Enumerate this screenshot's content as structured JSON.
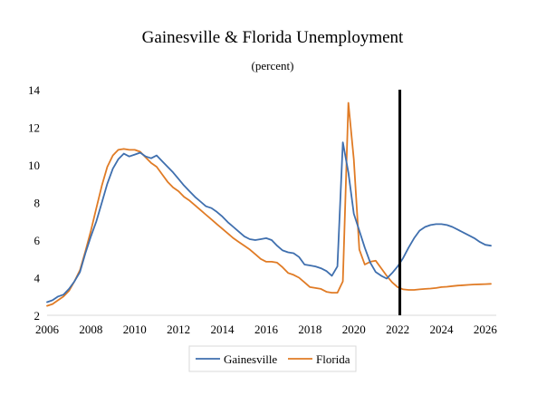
{
  "chart_data": {
    "type": "line",
    "title": "Gainesville & Florida Unemployment",
    "subtitle": "(percent)",
    "xlabel": "",
    "ylabel": "",
    "xlim": [
      2006,
      2026.5
    ],
    "ylim": [
      2,
      14
    ],
    "xticks": [
      "2006",
      "2008",
      "2010",
      "2012",
      "2014",
      "2016",
      "2018",
      "2020",
      "2022",
      "2024",
      "2026"
    ],
    "yticks": [
      "2",
      "4",
      "6",
      "8",
      "10",
      "12",
      "14"
    ],
    "grid": false,
    "legend_position": "bottom",
    "forecast_line_x": 2022.1,
    "series": [
      {
        "name": "Gainesville",
        "color": "#3f6fae",
        "x": [
          2006.0,
          2006.25,
          2006.5,
          2006.75,
          2007.0,
          2007.25,
          2007.5,
          2007.75,
          2008.0,
          2008.25,
          2008.5,
          2008.75,
          2009.0,
          2009.25,
          2009.5,
          2009.75,
          2010.0,
          2010.25,
          2010.5,
          2010.75,
          2011.0,
          2011.25,
          2011.5,
          2011.75,
          2012.0,
          2012.25,
          2012.5,
          2012.75,
          2013.0,
          2013.25,
          2013.5,
          2013.75,
          2014.0,
          2014.25,
          2014.5,
          2014.75,
          2015.0,
          2015.25,
          2015.5,
          2015.75,
          2016.0,
          2016.25,
          2016.5,
          2016.75,
          2017.0,
          2017.25,
          2017.5,
          2017.75,
          2018.0,
          2018.25,
          2018.5,
          2018.75,
          2019.0,
          2019.25,
          2019.5,
          2019.75,
          2020.0,
          2020.25,
          2020.5,
          2020.75,
          2021.0,
          2021.25,
          2021.5,
          2021.75,
          2022.0,
          2022.25,
          2022.5,
          2022.75,
          2023.0,
          2023.25,
          2023.5,
          2023.75,
          2024.0,
          2024.25,
          2024.5,
          2024.75,
          2025.0,
          2025.25,
          2025.5,
          2025.75,
          2026.0,
          2026.25
        ],
        "values": [
          2.7,
          2.8,
          3.0,
          3.1,
          3.4,
          3.8,
          4.3,
          5.3,
          6.2,
          7.0,
          8.0,
          9.0,
          9.8,
          10.3,
          10.6,
          10.45,
          10.55,
          10.65,
          10.45,
          10.35,
          10.5,
          10.2,
          9.9,
          9.6,
          9.25,
          8.9,
          8.6,
          8.3,
          8.05,
          7.8,
          7.7,
          7.5,
          7.25,
          6.95,
          6.7,
          6.45,
          6.2,
          6.05,
          6.0,
          6.05,
          6.1,
          6.0,
          5.7,
          5.45,
          5.35,
          5.3,
          5.1,
          4.7,
          4.65,
          4.6,
          4.5,
          4.35,
          4.1,
          4.6,
          11.2,
          9.6,
          7.4,
          6.5,
          5.6,
          4.8,
          4.3,
          4.1,
          3.95,
          4.25,
          4.6,
          5.05,
          5.6,
          6.1,
          6.5,
          6.7,
          6.8,
          6.85,
          6.85,
          6.8,
          6.7,
          6.55,
          6.4,
          6.25,
          6.1,
          5.9,
          5.75,
          5.7
        ]
      },
      {
        "name": "Florida",
        "color": "#e07b25",
        "x": [
          2006.0,
          2006.25,
          2006.5,
          2006.75,
          2007.0,
          2007.25,
          2007.5,
          2007.75,
          2008.0,
          2008.25,
          2008.5,
          2008.75,
          2009.0,
          2009.25,
          2009.5,
          2009.75,
          2010.0,
          2010.25,
          2010.5,
          2010.75,
          2011.0,
          2011.25,
          2011.5,
          2011.75,
          2012.0,
          2012.25,
          2012.5,
          2012.75,
          2013.0,
          2013.25,
          2013.5,
          2013.75,
          2014.0,
          2014.25,
          2014.5,
          2014.75,
          2015.0,
          2015.25,
          2015.5,
          2015.75,
          2016.0,
          2016.25,
          2016.5,
          2016.75,
          2017.0,
          2017.25,
          2017.5,
          2017.75,
          2018.0,
          2018.25,
          2018.5,
          2018.75,
          2019.0,
          2019.25,
          2019.5,
          2019.75,
          2020.0,
          2020.25,
          2020.5,
          2020.75,
          2021.0,
          2021.25,
          2021.5,
          2021.75,
          2022.0,
          2022.25,
          2022.5,
          2022.75,
          2023.0,
          2023.25,
          2023.5,
          2023.75,
          2024.0,
          2024.25,
          2024.5,
          2024.75,
          2025.0,
          2025.25,
          2025.5,
          2025.75,
          2026.0,
          2026.25
        ],
        "values": [
          2.5,
          2.6,
          2.8,
          3.0,
          3.3,
          3.8,
          4.4,
          5.4,
          6.5,
          7.7,
          8.9,
          9.9,
          10.5,
          10.8,
          10.85,
          10.8,
          10.8,
          10.7,
          10.4,
          10.1,
          9.9,
          9.5,
          9.1,
          8.8,
          8.6,
          8.3,
          8.1,
          7.85,
          7.6,
          7.35,
          7.1,
          6.85,
          6.6,
          6.35,
          6.1,
          5.9,
          5.7,
          5.5,
          5.25,
          5.0,
          4.85,
          4.85,
          4.8,
          4.55,
          4.25,
          4.15,
          4.0,
          3.75,
          3.5,
          3.45,
          3.4,
          3.25,
          3.2,
          3.2,
          3.8,
          13.3,
          10.3,
          5.5,
          4.7,
          4.85,
          4.9,
          4.5,
          4.1,
          3.75,
          3.5,
          3.38,
          3.35,
          3.35,
          3.38,
          3.4,
          3.42,
          3.45,
          3.5,
          3.52,
          3.55,
          3.58,
          3.6,
          3.62,
          3.64,
          3.65,
          3.66,
          3.67
        ]
      }
    ]
  }
}
